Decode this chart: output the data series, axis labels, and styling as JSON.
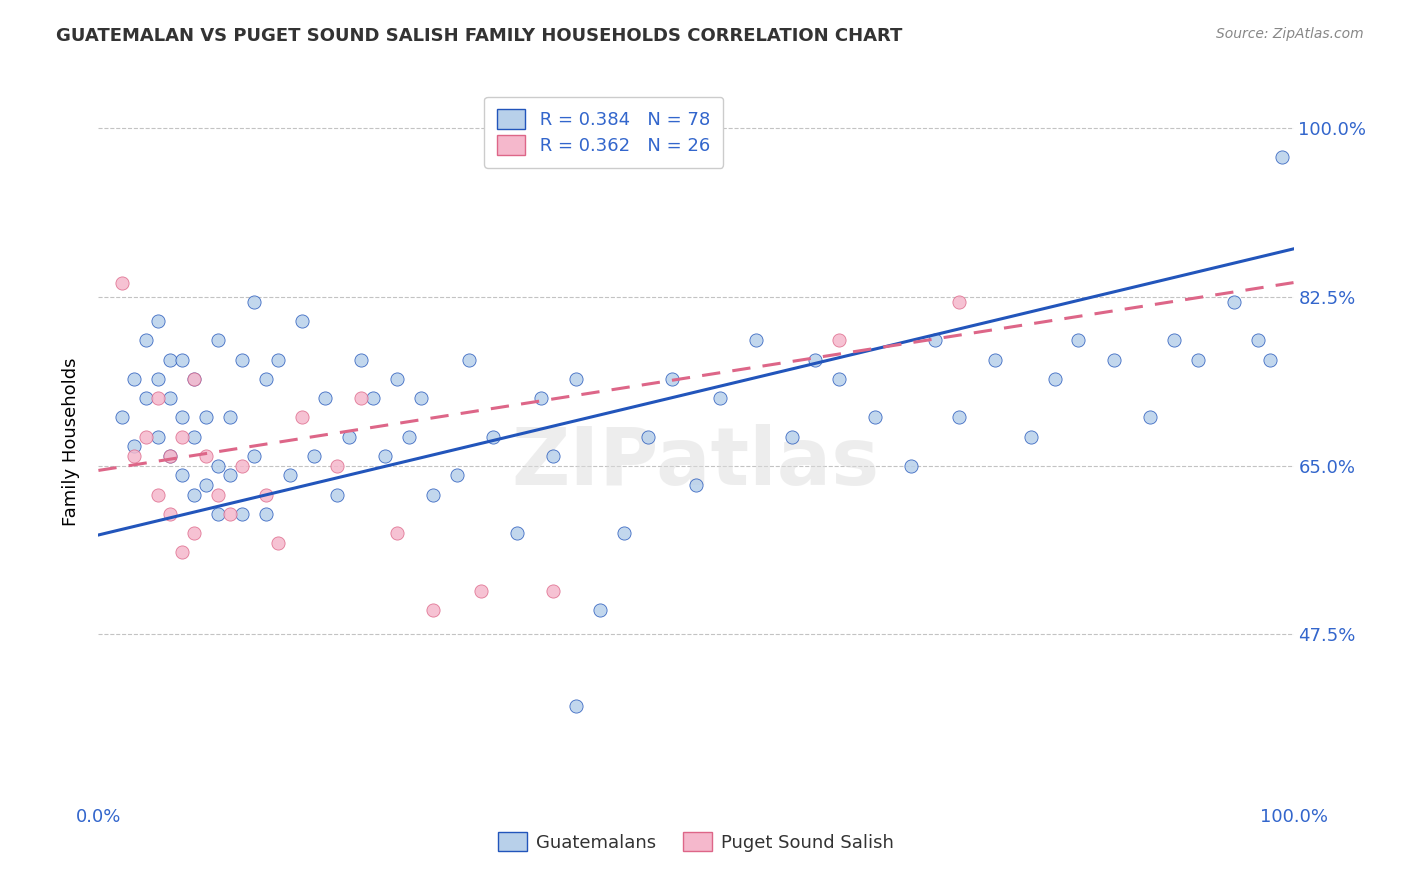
{
  "title": "GUATEMALAN VS PUGET SOUND SALISH FAMILY HOUSEHOLDS CORRELATION CHART",
  "source": "Source: ZipAtlas.com",
  "ylabel": "Family Households",
  "xlim": [
    0.0,
    1.0
  ],
  "ylim": [
    0.3,
    1.05
  ],
  "yticks": [
    0.475,
    0.65,
    0.825,
    1.0
  ],
  "ytick_labels": [
    "47.5%",
    "65.0%",
    "82.5%",
    "100.0%"
  ],
  "xticks": [
    0.0,
    1.0
  ],
  "xtick_labels": [
    "0.0%",
    "100.0%"
  ],
  "legend_r1": "R = 0.384",
  "legend_n1": "N = 78",
  "legend_r2": "R = 0.362",
  "legend_n2": "N = 26",
  "color_blue": "#b8d0ea",
  "color_pink": "#f5b8cc",
  "line_blue": "#2255bb",
  "line_pink": "#dd6688",
  "blue_scatter_x": [
    0.02,
    0.03,
    0.03,
    0.04,
    0.04,
    0.05,
    0.05,
    0.05,
    0.06,
    0.06,
    0.06,
    0.07,
    0.07,
    0.07,
    0.08,
    0.08,
    0.08,
    0.09,
    0.09,
    0.1,
    0.1,
    0.1,
    0.11,
    0.11,
    0.12,
    0.12,
    0.13,
    0.13,
    0.14,
    0.14,
    0.15,
    0.16,
    0.17,
    0.18,
    0.19,
    0.2,
    0.21,
    0.22,
    0.23,
    0.24,
    0.25,
    0.26,
    0.27,
    0.28,
    0.3,
    0.31,
    0.33,
    0.35,
    0.37,
    0.38,
    0.4,
    0.42,
    0.44,
    0.46,
    0.48,
    0.5,
    0.52,
    0.55,
    0.58,
    0.6,
    0.62,
    0.65,
    0.68,
    0.7,
    0.72,
    0.75,
    0.78,
    0.8,
    0.82,
    0.85,
    0.88,
    0.9,
    0.92,
    0.95,
    0.97,
    0.98,
    0.4,
    0.99
  ],
  "blue_scatter_y": [
    0.7,
    0.67,
    0.74,
    0.72,
    0.78,
    0.68,
    0.74,
    0.8,
    0.66,
    0.72,
    0.76,
    0.64,
    0.7,
    0.76,
    0.62,
    0.68,
    0.74,
    0.63,
    0.7,
    0.6,
    0.65,
    0.78,
    0.64,
    0.7,
    0.6,
    0.76,
    0.66,
    0.82,
    0.6,
    0.74,
    0.76,
    0.64,
    0.8,
    0.66,
    0.72,
    0.62,
    0.68,
    0.76,
    0.72,
    0.66,
    0.74,
    0.68,
    0.72,
    0.62,
    0.64,
    0.76,
    0.68,
    0.58,
    0.72,
    0.66,
    0.74,
    0.5,
    0.58,
    0.68,
    0.74,
    0.63,
    0.72,
    0.78,
    0.68,
    0.76,
    0.74,
    0.7,
    0.65,
    0.78,
    0.7,
    0.76,
    0.68,
    0.74,
    0.78,
    0.76,
    0.7,
    0.78,
    0.76,
    0.82,
    0.78,
    0.76,
    0.4,
    0.97
  ],
  "pink_scatter_x": [
    0.02,
    0.03,
    0.04,
    0.05,
    0.05,
    0.06,
    0.06,
    0.07,
    0.07,
    0.08,
    0.08,
    0.09,
    0.1,
    0.11,
    0.12,
    0.14,
    0.15,
    0.17,
    0.2,
    0.22,
    0.25,
    0.28,
    0.32,
    0.38,
    0.62,
    0.72
  ],
  "pink_scatter_y": [
    0.84,
    0.66,
    0.68,
    0.62,
    0.72,
    0.6,
    0.66,
    0.56,
    0.68,
    0.58,
    0.74,
    0.66,
    0.62,
    0.6,
    0.65,
    0.62,
    0.57,
    0.7,
    0.65,
    0.72,
    0.58,
    0.5,
    0.52,
    0.52,
    0.78,
    0.82
  ],
  "blue_line_x0": 0.0,
  "blue_line_y0": 0.578,
  "blue_line_x1": 1.0,
  "blue_line_y1": 0.875,
  "pink_line_x0": 0.0,
  "pink_line_y0": 0.645,
  "pink_line_x1": 1.0,
  "pink_line_y1": 0.84
}
